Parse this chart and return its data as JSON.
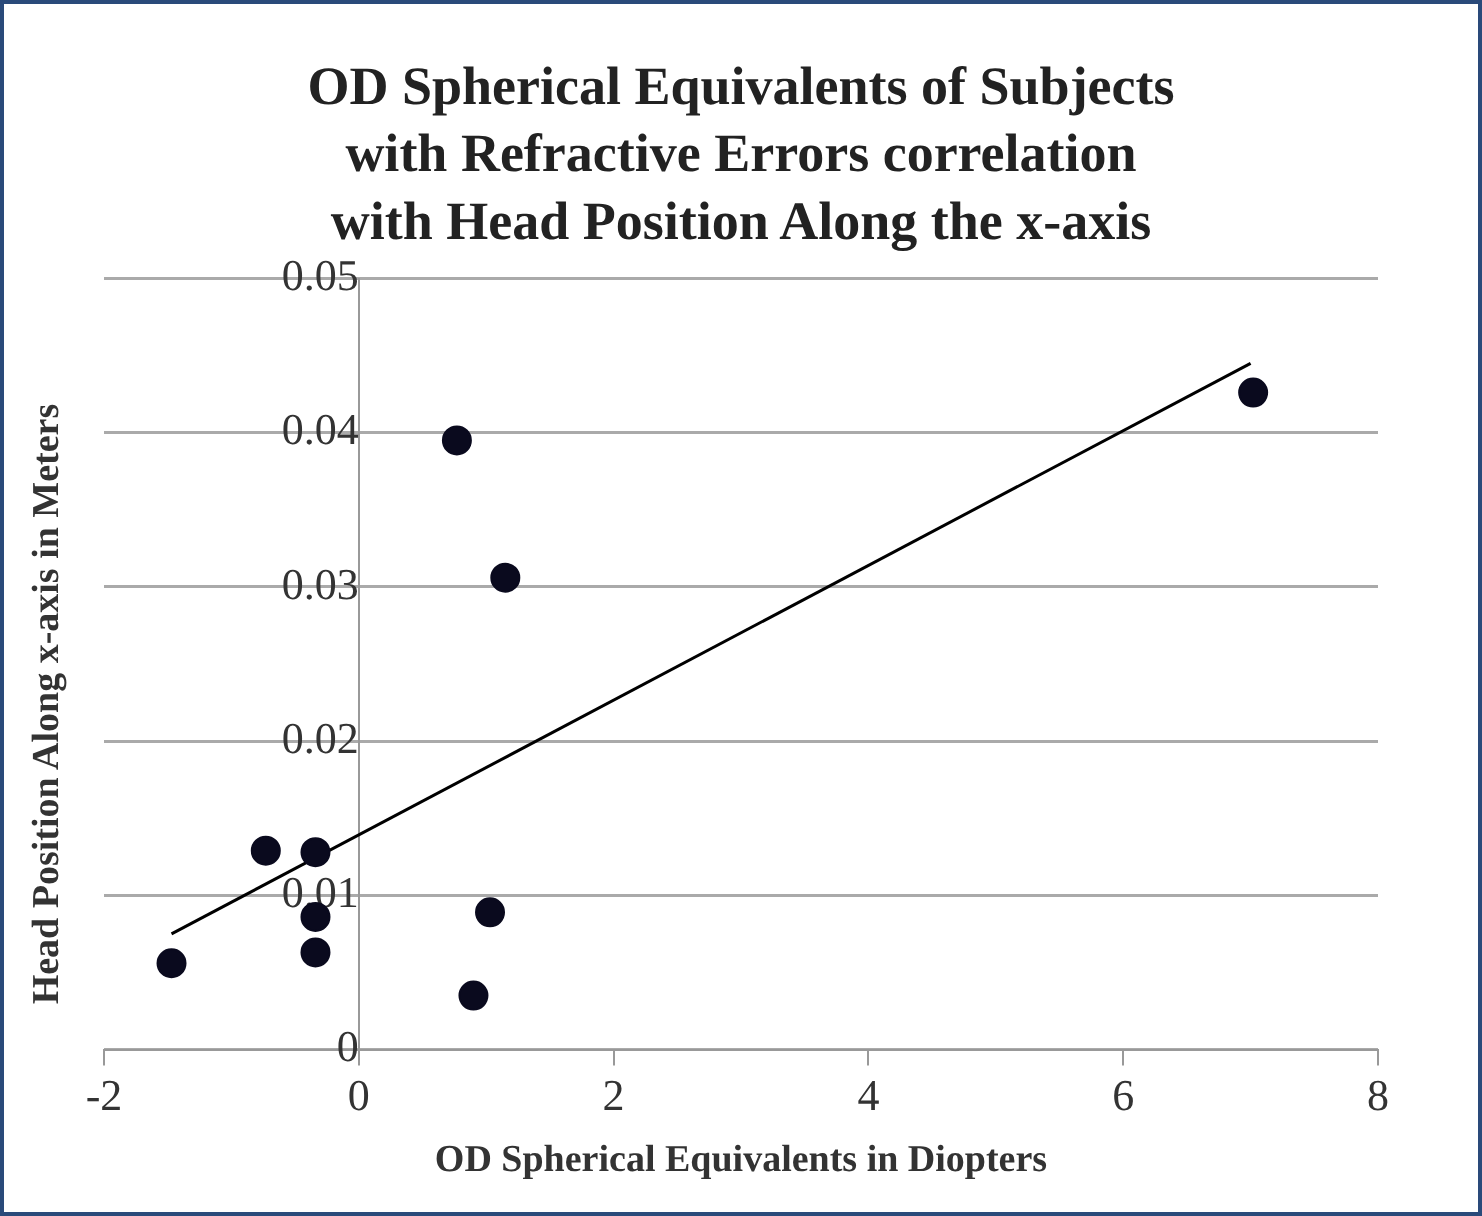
{
  "chart_data": {
    "type": "scatter",
    "title": "OD Spherical Equivalents of Subjects with Refractive Errors correlation with Head Position Along the x-axis",
    "xlabel": "OD Spherical Equivalents in Diopters",
    "ylabel": "Head Position Along x-axis in Meters",
    "xlim": [
      -2,
      8
    ],
    "xticks": [
      -2,
      0,
      2,
      4,
      6,
      8
    ],
    "ylim": [
      0,
      0.05
    ],
    "yticks": [
      0,
      0.01,
      0.02,
      0.03,
      0.04,
      0.05
    ],
    "grid": "y",
    "legend": false,
    "marker": "circle",
    "series": [
      {
        "color": "#0a0a1e",
        "x": [
          -1.47,
          -0.73,
          -0.34,
          -0.34,
          -0.34,
          0.77,
          1.15,
          1.03,
          0.9,
          7.02
        ],
        "values": [
          0.0056,
          0.0129,
          0.0128,
          0.0086,
          0.0063,
          0.0395,
          0.0306,
          0.0089,
          0.0035,
          0.0426
        ]
      },
      {
        "type": "line",
        "marker": "none",
        "color": "#000000",
        "x": [
          -1.47,
          7.0
        ],
        "values": [
          0.0075,
          0.0445
        ]
      }
    ]
  }
}
